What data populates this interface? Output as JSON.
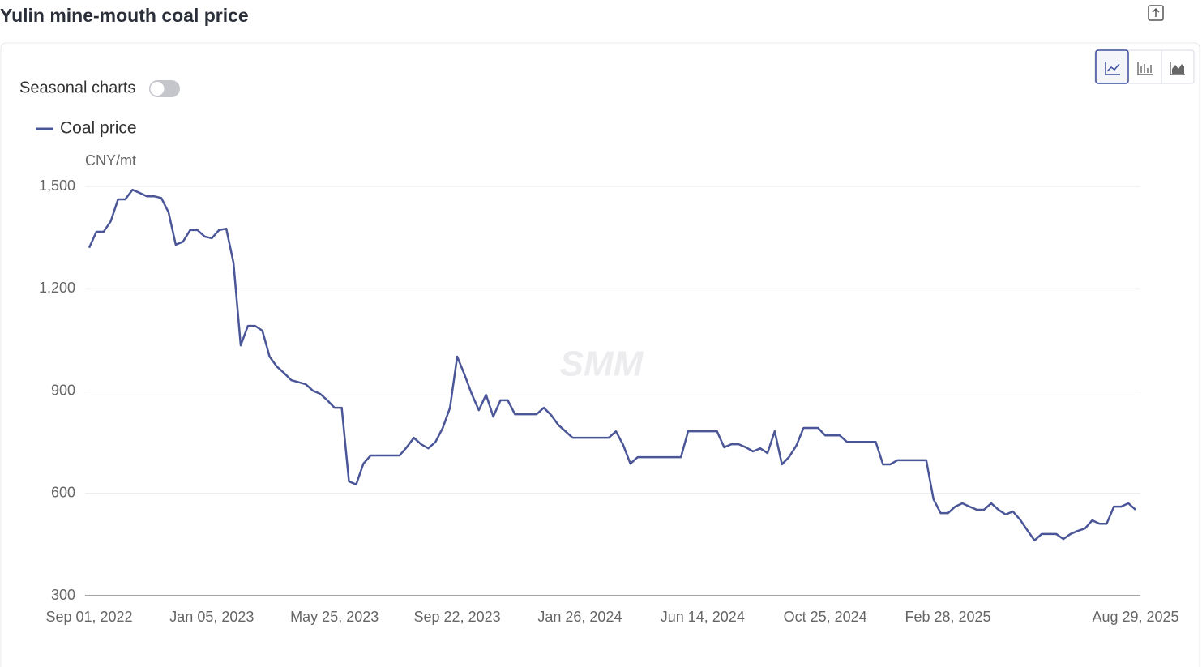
{
  "chart_data": {
    "type": "line",
    "title": "Yulin mine-mouth coal price",
    "toggle_label": "Seasonal charts",
    "y_label": "CNY/mt",
    "watermark": "SMM",
    "categories": [
      "Sep 01, 2022",
      null,
      null,
      null,
      null,
      null,
      null,
      null,
      null,
      null,
      null,
      null,
      null,
      null,
      null,
      null,
      null,
      "Jan 05, 2023",
      null,
      null,
      null,
      null,
      null,
      null,
      null,
      null,
      null,
      null,
      null,
      null,
      null,
      null,
      null,
      null,
      "May 25, 2023",
      null,
      null,
      null,
      null,
      null,
      null,
      null,
      null,
      null,
      null,
      null,
      null,
      null,
      null,
      null,
      null,
      "Sep 22, 2023",
      null,
      null,
      null,
      null,
      null,
      null,
      null,
      null,
      null,
      null,
      null,
      null,
      null,
      null,
      null,
      null,
      "Jan 26, 2024",
      null,
      null,
      null,
      null,
      null,
      null,
      null,
      null,
      null,
      null,
      null,
      null,
      null,
      null,
      null,
      null,
      "Jun 14, 2024",
      null,
      null,
      null,
      null,
      null,
      null,
      null,
      null,
      null,
      null,
      null,
      null,
      null,
      null,
      null,
      null,
      "Oct 25, 2024",
      null,
      null,
      null,
      null,
      null,
      null,
      null,
      null,
      null,
      null,
      null,
      null,
      null,
      null,
      null,
      null,
      "Feb 28, 2025",
      null,
      null,
      null,
      null,
      null,
      null,
      null,
      null,
      null,
      null,
      null,
      null,
      null,
      null,
      null,
      null,
      null,
      null,
      null,
      null,
      null,
      null,
      null,
      null,
      null,
      "Aug 29, 2025"
    ],
    "series": [
      {
        "name": "Coal price",
        "color": "#4a5697",
        "values": [
          1320,
          1367,
          1367,
          1398,
          1462,
          1462,
          1490,
          1481,
          1471,
          1471,
          1466,
          1424,
          1329,
          1338,
          1372,
          1372,
          1353,
          1348,
          1372,
          1376,
          1276,
          1034,
          1091,
          1091,
          1077,
          1001,
          972,
          953,
          932,
          926,
          920,
          901,
          892,
          873,
          851,
          851,
          635,
          626,
          687,
          711,
          711,
          711,
          711,
          711,
          735,
          763,
          744,
          732,
          751,
          792,
          851,
          1001,
          949,
          892,
          844,
          889,
          825,
          873,
          873,
          832,
          832,
          832,
          832,
          851,
          830,
          801,
          782,
          763,
          763,
          763,
          763,
          763,
          763,
          782,
          742,
          687,
          706,
          706,
          706,
          706,
          706,
          706,
          706,
          782,
          782,
          782,
          782,
          782,
          735,
          744,
          744,
          735,
          723,
          732,
          718,
          782,
          685,
          707,
          740,
          792,
          792,
          792,
          770,
          770,
          770,
          751,
          751,
          751,
          751,
          751,
          685,
          685,
          697,
          697,
          697,
          697,
          697,
          583,
          542,
          542,
          561,
          571,
          561,
          552,
          552,
          571,
          552,
          538,
          547,
          523,
          492,
          462,
          481,
          481,
          481,
          466,
          481,
          490,
          497,
          521,
          511,
          511,
          561,
          561,
          571,
          552
        ]
      }
    ],
    "ylim": [
      300,
      1500
    ],
    "yticks": [
      300,
      600,
      900,
      {
        "value": 1200,
        "label": "1,200"
      },
      {
        "value": 1500,
        "label": "1,500"
      }
    ],
    "grid": true
  }
}
